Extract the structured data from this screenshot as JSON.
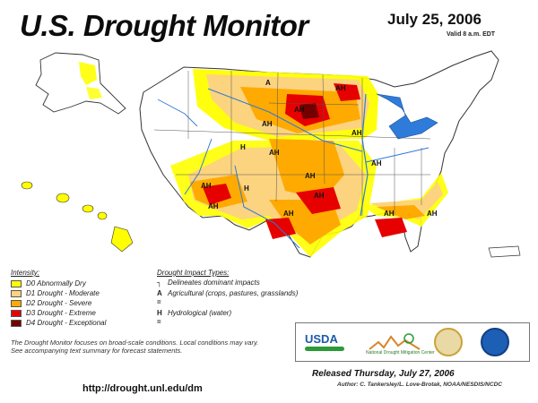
{
  "header": {
    "title": "U.S. Drought Monitor",
    "date": "July 25, 2006",
    "valid": "Valid 8 a.m. EDT"
  },
  "legend": {
    "intensity_heading": "Intensity:",
    "items": [
      {
        "label": "D0 Abnormally Dry",
        "color": "#ffff00"
      },
      {
        "label": "D1 Drought - Moderate",
        "color": "#fcd37f"
      },
      {
        "label": "D2 Drought - Severe",
        "color": "#ffaa00"
      },
      {
        "label": "D3 Drought - Extreme",
        "color": "#e60000"
      },
      {
        "label": "D4 Drought - Exceptional",
        "color": "#730000"
      }
    ],
    "impact_heading": "Drought Impact Types:",
    "impact_items": [
      {
        "symbol": "┐",
        "text": "Delineates dominant impacts"
      },
      {
        "symbol": "A =",
        "text": "Agricultural (crops, pastures, grasslands)"
      },
      {
        "symbol": "H =",
        "text": "Hydrological (water)"
      }
    ]
  },
  "map": {
    "labels": [
      "A",
      "AH",
      "AH",
      "AH",
      "AH",
      "AH",
      "AH",
      "H",
      "AH",
      "AH",
      "AH",
      "AH",
      "AH",
      "AH",
      "H",
      "AH"
    ]
  },
  "note": "The Drought Monitor focuses on broad-scale conditions. Local conditions may vary. See accompanying text summary for forecast statements.",
  "url": "http://drought.unl.edu/dm",
  "logos": {
    "usda": "USDA",
    "ndmc_text": "National Drought Mitigation Center"
  },
  "released": "Released Thursday, July 27, 2006",
  "author": "Author: C. Tankersley/L. Love-Brotak, NOAA/NESDIS/NCDC"
}
